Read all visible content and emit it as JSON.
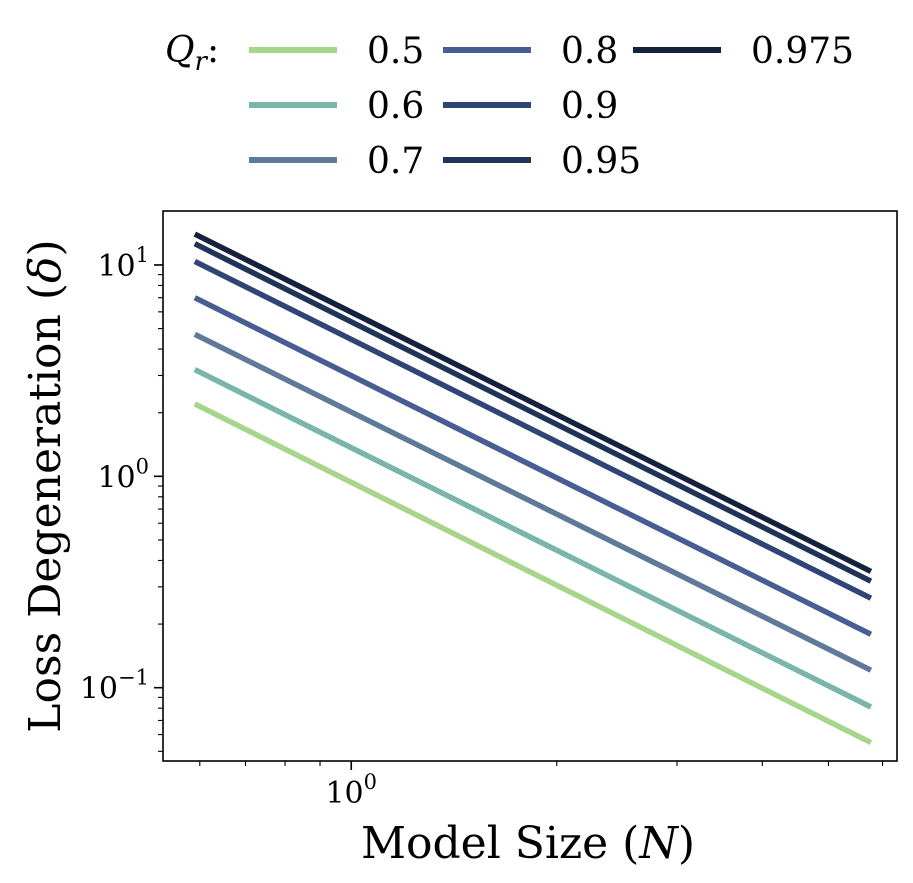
{
  "chart_data": {
    "type": "line",
    "xscale": "log",
    "yscale": "log",
    "xlabel": "Model Size (N)",
    "ylabel": "Loss Degeneration (δ)",
    "xlim": [
      0.53,
      6.3
    ],
    "ylim": [
      0.045,
      18
    ],
    "x_range": [
      0.59,
      5.77
    ],
    "x_ticks": [
      {
        "value": 1,
        "label": "10^0"
      }
    ],
    "y_ticks": [
      {
        "value": 10,
        "label": "10^1"
      },
      {
        "value": 1,
        "label": "10^0"
      },
      {
        "value": 0.1,
        "label": "10^-1"
      }
    ],
    "legend": {
      "title": "Q_r:",
      "placement": "top",
      "columns": 3
    },
    "series": [
      {
        "name": "0.5",
        "color": "#a6d58c",
        "y_start": 2.2,
        "y_end": 0.055
      },
      {
        "name": "0.6",
        "color": "#79b5a8",
        "y_start": 3.2,
        "y_end": 0.081
      },
      {
        "name": "0.7",
        "color": "#5d7a98",
        "y_start": 4.7,
        "y_end": 0.121
      },
      {
        "name": "0.8",
        "color": "#465e94",
        "y_start": 7.0,
        "y_end": 0.179
      },
      {
        "name": "0.9",
        "color": "#2e4575",
        "y_start": 10.4,
        "y_end": 0.265
      },
      {
        "name": "0.95",
        "color": "#203459",
        "y_start": 12.6,
        "y_end": 0.319
      },
      {
        "name": "0.975",
        "color": "#15223e",
        "y_start": 14.0,
        "y_end": 0.355
      }
    ]
  }
}
